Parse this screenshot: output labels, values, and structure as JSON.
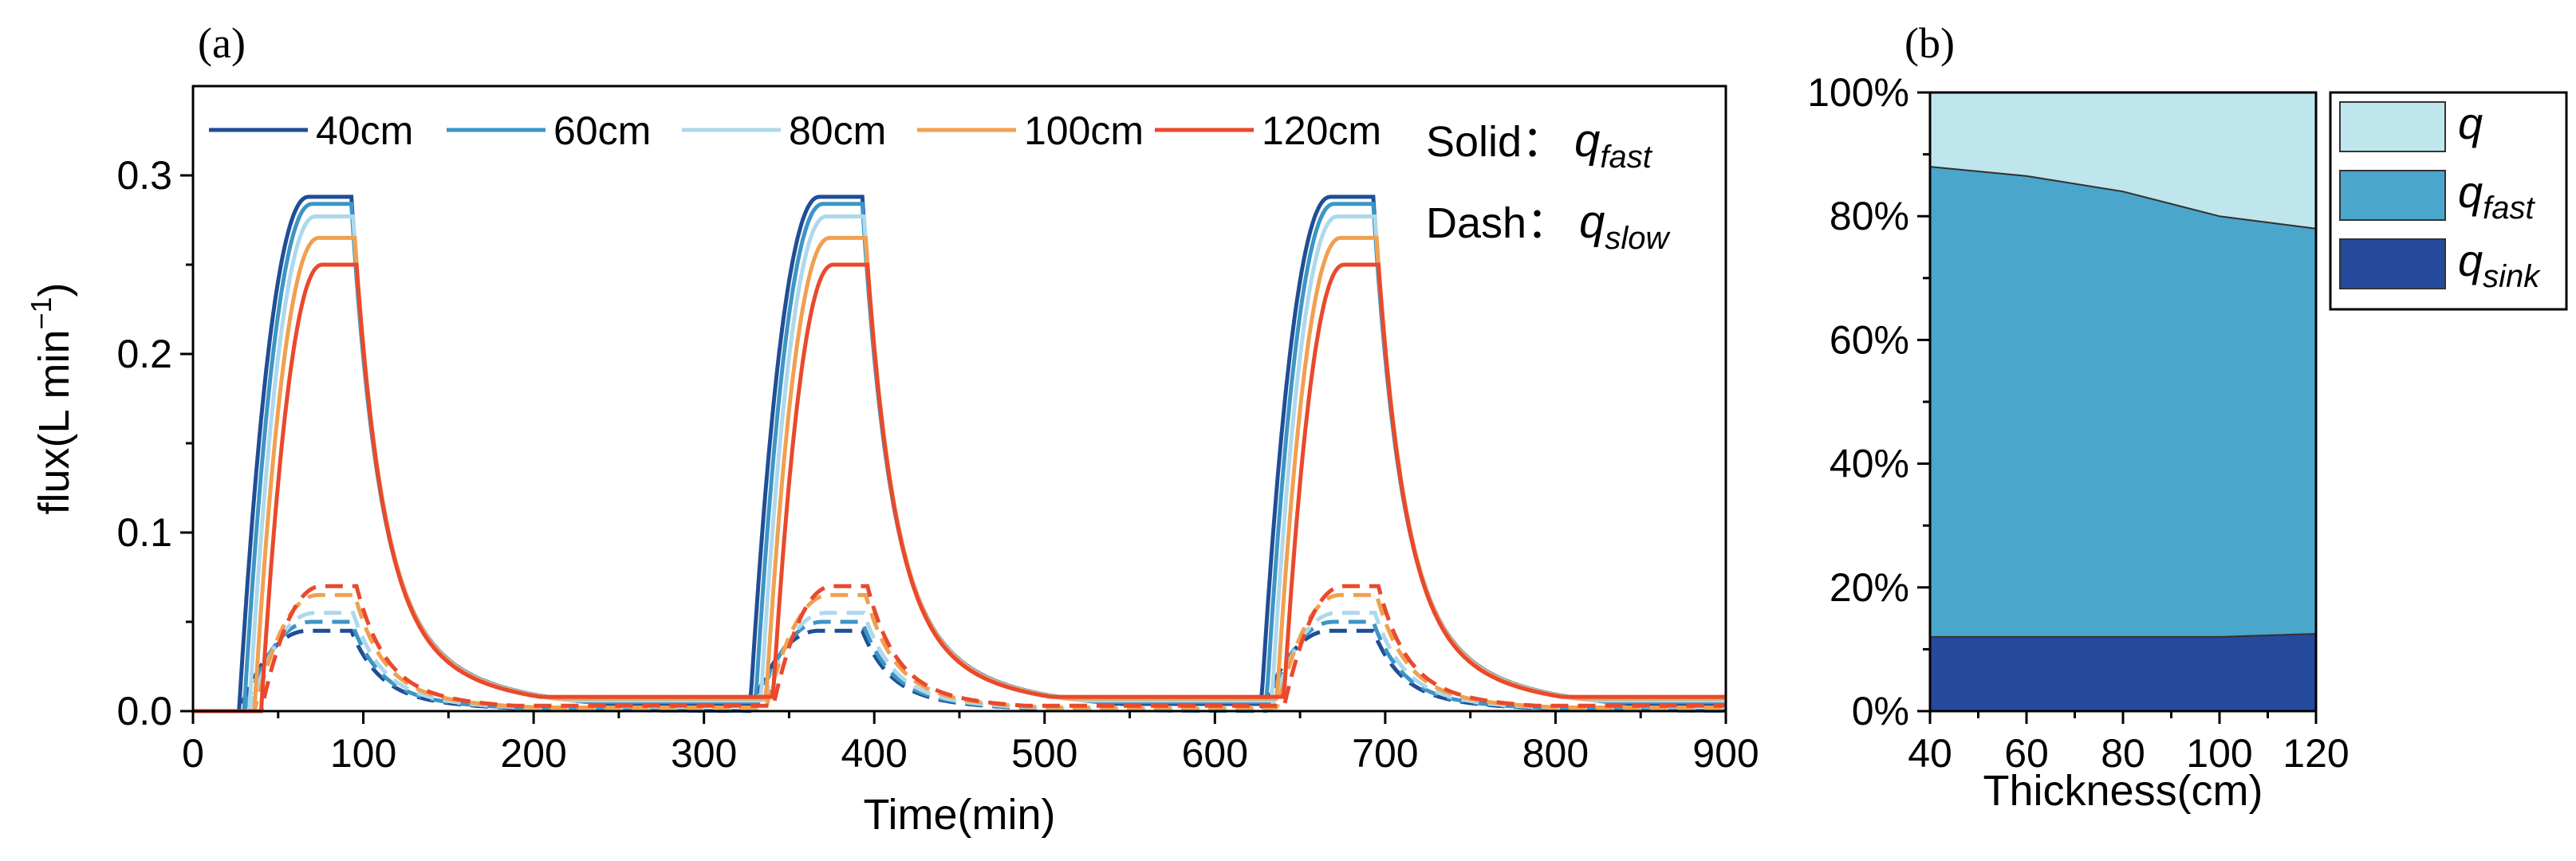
{
  "panel_a_label": "(a)",
  "panel_b_label": "(b)",
  "chart_data": [
    {
      "id": "a",
      "type": "line",
      "xlabel": "Time(min)",
      "ylabel": "flux(L min",
      "ylabel_sup": "−1",
      "ylabel_close": ")",
      "xlim": [
        0,
        900
      ],
      "ylim": [
        0,
        0.35
      ],
      "xticks": [
        0,
        100,
        200,
        300,
        400,
        500,
        600,
        700,
        800,
        900
      ],
      "yticks": [
        0.0,
        0.1,
        0.2,
        0.3
      ],
      "ytick_labels": [
        "0.0",
        "0.1",
        "0.2",
        "0.3"
      ],
      "annotation_solid": {
        "prefix": "Solid：",
        "var": "q",
        "sub": "fast"
      },
      "annotation_dash": {
        "prefix": "Dash：",
        "var": "q",
        "sub": "slow"
      },
      "pulse_starts": [
        0,
        300,
        600
      ],
      "series": [
        {
          "name": "40cm",
          "color": "#1f4e96",
          "onset": 27,
          "rise_end": 68,
          "fall_start": 93,
          "tail_to": 900,
          "peak_fast": 0.288,
          "peak_slow": 0.045,
          "baseline_fast": 0.004,
          "baseline_slow": 0.0
        },
        {
          "name": "60cm",
          "color": "#3c95c6",
          "onset": 30,
          "rise_end": 70,
          "fall_start": 93,
          "tail_to": 900,
          "peak_fast": 0.284,
          "peak_slow": 0.05,
          "baseline_fast": 0.005,
          "baseline_slow": 0.0
        },
        {
          "name": "80cm",
          "color": "#aed8ec",
          "onset": 33,
          "rise_end": 72,
          "fall_start": 94,
          "tail_to": 900,
          "peak_fast": 0.277,
          "peak_slow": 0.055,
          "baseline_fast": 0.006,
          "baseline_slow": 0.001
        },
        {
          "name": "100cm",
          "color": "#f0a050",
          "onset": 36,
          "rise_end": 74,
          "fall_start": 95,
          "tail_to": 900,
          "peak_fast": 0.265,
          "peak_slow": 0.065,
          "baseline_fast": 0.007,
          "baseline_slow": 0.002
        },
        {
          "name": "120cm",
          "color": "#e9492c",
          "onset": 40,
          "rise_end": 76,
          "fall_start": 96,
          "tail_to": 900,
          "peak_fast": 0.25,
          "peak_slow": 0.07,
          "baseline_fast": 0.008,
          "baseline_slow": 0.003
        }
      ]
    },
    {
      "id": "b",
      "type": "area",
      "stacking": "percent",
      "xlabel": "Thickness(cm)",
      "xlim": [
        40,
        120
      ],
      "ylim": [
        0,
        100
      ],
      "x": [
        40,
        60,
        80,
        100,
        120
      ],
      "xticks": [
        40,
        60,
        80,
        100,
        120
      ],
      "yticks": [
        0,
        20,
        40,
        60,
        80,
        100
      ],
      "ytick_labels": [
        "0%",
        "20%",
        "40%",
        "60%",
        "80%",
        "100%"
      ],
      "series": [
        {
          "name": "q_sink",
          "label": "q",
          "sub": "sink",
          "color": "#254a9b",
          "values": [
            12,
            12,
            12,
            12,
            12.5
          ]
        },
        {
          "name": "q_fast",
          "label": "q",
          "sub": "fast",
          "color": "#4ba6cb",
          "values": [
            76,
            74.5,
            72,
            68,
            65.5
          ]
        },
        {
          "name": "q",
          "label": "q",
          "sub": "",
          "color": "#bfe6ec",
          "values": [
            12,
            13.5,
            16,
            20,
            22
          ]
        }
      ],
      "legend_order": [
        "q",
        "q_fast",
        "q_sink"
      ],
      "legend_position": "right"
    }
  ]
}
